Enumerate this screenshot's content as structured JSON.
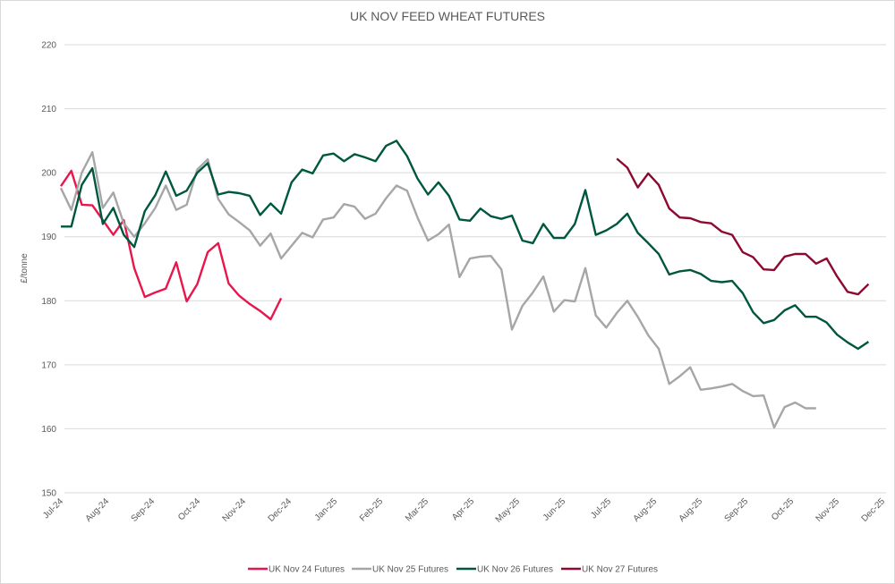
{
  "chart_data": {
    "type": "line",
    "title": "UK NOV FEED WHEAT FUTURES",
    "ylabel": "£/tonne",
    "xlabel": "",
    "ylim": [
      150,
      220
    ],
    "yticks": [
      150,
      160,
      170,
      180,
      190,
      200,
      210,
      220
    ],
    "x_tick_labels": [
      "Jul-24",
      "Aug-24",
      "Sep-24",
      "Oct-24",
      "Nov-24",
      "Dec-24",
      "Jan-25",
      "Feb-25",
      "Mar-25",
      "Apr-25",
      "May-25",
      "Jun-25",
      "Jul-25",
      "Aug-25",
      "Aug-25",
      "Sep-25",
      "Oct-25",
      "Nov-25",
      "Dec-25"
    ],
    "x_interval": "weekly",
    "grid": "horizontal",
    "legend_position": "bottom",
    "series": [
      {
        "name": "UK Nov 24 Futures",
        "color": "#e8164b",
        "values": [
          197.9,
          200.3,
          195.0,
          194.9,
          192.6,
          190.3,
          192.6,
          185.1,
          180.6,
          181.3,
          181.9,
          186.0,
          179.9,
          182.6,
          187.6,
          189.0,
          182.7,
          180.8,
          179.5,
          178.4,
          177.1,
          180.4,
          null,
          null,
          null,
          null,
          null,
          null,
          null,
          null,
          null,
          null,
          null,
          null,
          null,
          null,
          null,
          null,
          null,
          null,
          null,
          null,
          null,
          null,
          null,
          null,
          null,
          null,
          null,
          null,
          null,
          null,
          null,
          null,
          null,
          null,
          null,
          null,
          null,
          null,
          null,
          null,
          null,
          null,
          null,
          null,
          null,
          null,
          null,
          null,
          null,
          null,
          null,
          null,
          null,
          null,
          null,
          null
        ]
      },
      {
        "name": "UK Nov 25 Futures",
        "color": "#a6a6a6",
        "values": [
          197.6,
          194.2,
          200.0,
          203.2,
          194.5,
          196.9,
          192.1,
          190.0,
          192.1,
          194.5,
          198.0,
          194.2,
          195.0,
          200.5,
          202.1,
          195.9,
          193.5,
          192.3,
          191.0,
          188.6,
          190.5,
          186.6,
          188.6,
          190.6,
          189.9,
          192.7,
          193.0,
          195.1,
          194.7,
          192.8,
          193.6,
          196.0,
          198.0,
          197.2,
          193.0,
          189.4,
          190.4,
          191.9,
          183.7,
          186.6,
          186.9,
          187.0,
          184.9,
          175.5,
          179.2,
          181.3,
          183.8,
          178.3,
          180.1,
          179.9,
          185.1,
          177.7,
          175.8,
          178.1,
          180.0,
          177.5,
          174.6,
          172.5,
          167.0,
          168.2,
          169.6,
          166.1,
          166.3,
          166.6,
          167.0,
          165.9,
          165.1,
          165.2,
          160.2,
          163.4,
          164.1,
          163.2,
          163.2,
          null,
          null,
          null,
          null,
          null
        ]
      },
      {
        "name": "UK Nov 26 Futures",
        "color": "#00573f",
        "values": [
          191.6,
          191.6,
          198.1,
          200.7,
          192.0,
          194.5,
          190.3,
          188.4,
          194.0,
          196.5,
          200.2,
          196.4,
          197.2,
          200.0,
          201.5,
          196.6,
          197.0,
          196.8,
          196.4,
          193.4,
          195.2,
          193.6,
          198.5,
          200.5,
          199.9,
          202.7,
          203.0,
          201.8,
          202.9,
          202.4,
          201.8,
          204.2,
          205.0,
          202.6,
          199.1,
          196.6,
          198.5,
          196.4,
          192.7,
          192.5,
          194.4,
          193.2,
          192.8,
          193.3,
          189.4,
          189.0,
          192.0,
          189.8,
          189.8,
          192.0,
          197.3,
          190.3,
          191.0,
          192.0,
          193.6,
          190.6,
          189.0,
          187.3,
          184.1,
          184.6,
          184.8,
          184.2,
          183.1,
          182.9,
          183.1,
          181.2,
          178.2,
          176.5,
          177.0,
          178.5,
          179.3,
          177.5,
          177.5,
          176.6,
          174.7,
          173.5,
          172.5,
          173.6
        ]
      },
      {
        "name": "UK Nov 27 Futures",
        "color": "#8c0a30",
        "values": [
          null,
          null,
          null,
          null,
          null,
          null,
          null,
          null,
          null,
          null,
          null,
          null,
          null,
          null,
          null,
          null,
          null,
          null,
          null,
          null,
          null,
          null,
          null,
          null,
          null,
          null,
          null,
          null,
          null,
          null,
          null,
          null,
          null,
          null,
          null,
          null,
          null,
          null,
          null,
          null,
          null,
          null,
          null,
          null,
          null,
          null,
          null,
          null,
          null,
          null,
          null,
          null,
          null,
          202.2,
          200.8,
          197.7,
          199.9,
          198.1,
          194.4,
          193.0,
          192.9,
          192.3,
          192.1,
          190.8,
          190.3,
          187.6,
          186.8,
          184.9,
          184.8,
          186.9,
          187.3,
          187.3,
          185.8,
          186.6,
          183.8,
          181.4,
          181.0,
          182.6
        ]
      }
    ]
  }
}
